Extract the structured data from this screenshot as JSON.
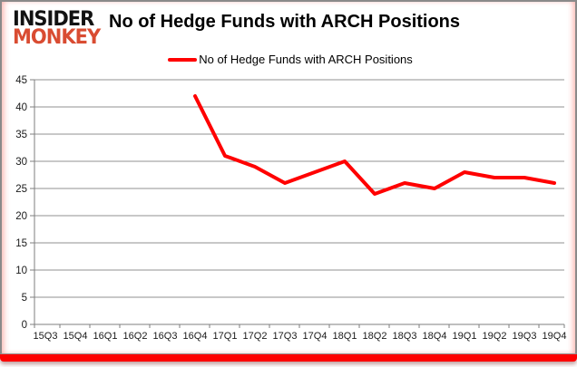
{
  "brand": {
    "line1": "INSIDER",
    "line2": "MONKEY",
    "color": "#d94c32"
  },
  "header": {
    "title": "No of Hedge Funds with ARCH Positions"
  },
  "legend": {
    "label": "No of Hedge Funds with ARCH Positions",
    "swatch_color": "#ff0000"
  },
  "chart_data": {
    "type": "line",
    "title": "No of Hedge Funds with ARCH Positions",
    "xlabel": "",
    "ylabel": "",
    "categories": [
      "15Q3",
      "15Q4",
      "16Q1",
      "16Q2",
      "16Q3",
      "16Q4",
      "17Q1",
      "17Q2",
      "17Q3",
      "17Q4",
      "18Q1",
      "18Q2",
      "18Q3",
      "18Q4",
      "19Q1",
      "19Q2",
      "19Q3",
      "19Q4"
    ],
    "series": [
      {
        "name": "No of Hedge Funds with ARCH Positions",
        "color": "#ff0000",
        "values": [
          null,
          null,
          null,
          null,
          null,
          42,
          31,
          29,
          26,
          28,
          30,
          24,
          26,
          25,
          28,
          27,
          27,
          26
        ]
      }
    ],
    "ylim": [
      0,
      45
    ],
    "ytick_step": 5,
    "grid": true,
    "legend_position": "top"
  },
  "colors": {
    "grid": "#909090",
    "axis": "#7f7f7f",
    "tick_label": "#1a1a1a",
    "frame_border": "#8a8a8a",
    "bottom_bar": "#fe0000"
  }
}
